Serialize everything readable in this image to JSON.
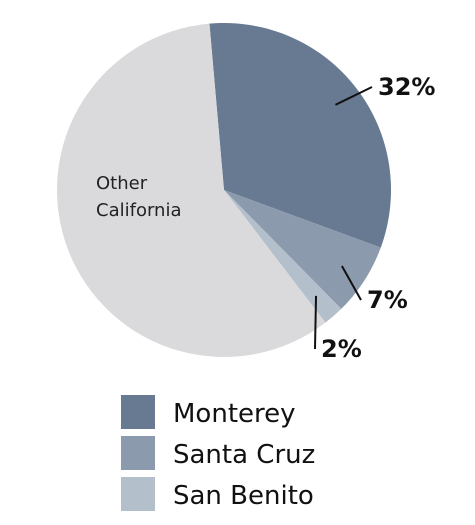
{
  "chart_data": {
    "type": "pie",
    "title": "",
    "slices": [
      {
        "name": "Monterey",
        "value": 32,
        "label": "32%",
        "color": "#677a91"
      },
      {
        "name": "Santa Cruz",
        "value": 7,
        "label": "7%",
        "color": "#8c9aad"
      },
      {
        "name": "San Benito",
        "value": 2,
        "label": "2%",
        "color": "#b4bfcc"
      },
      {
        "name": "Other California",
        "value": 59,
        "label": "",
        "color": "#dadadc"
      }
    ],
    "inner_label": "Other California",
    "legend": {
      "placement": "bottom",
      "entries": [
        {
          "name": "Monterey",
          "color": "#677a91"
        },
        {
          "name": "Santa Cruz",
          "color": "#8c9aad"
        },
        {
          "name": "San Benito",
          "color": "#b4bfcc"
        }
      ]
    }
  }
}
